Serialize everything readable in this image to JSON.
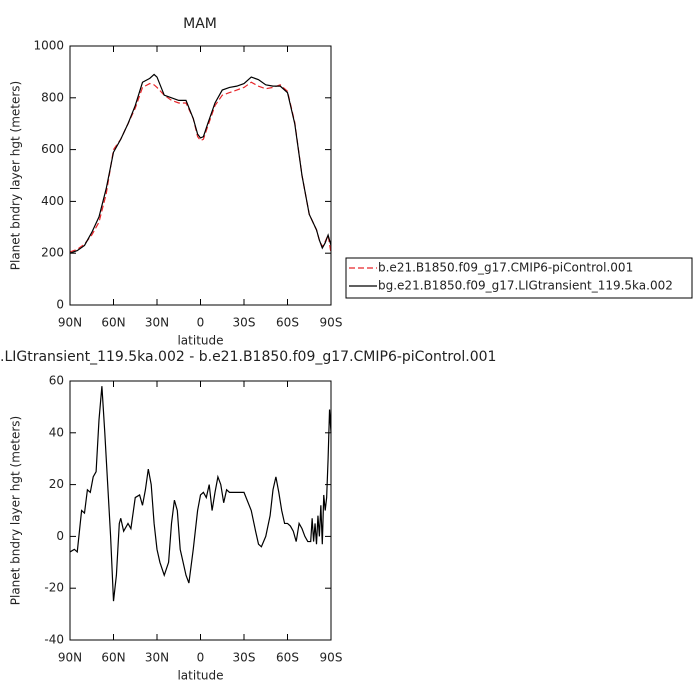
{
  "chart_data": [
    {
      "type": "line",
      "title": "MAM",
      "ylabel": "Planet bndry layer hgt (meters)",
      "xlabel": "latitude",
      "x": [
        90,
        85,
        80,
        75,
        70,
        65,
        60,
        55,
        50,
        45,
        40,
        35,
        32,
        30,
        25,
        20,
        15,
        10,
        5,
        2,
        0,
        -2,
        -5,
        -10,
        -15,
        -20,
        -25,
        -30,
        -35,
        -40,
        -45,
        -50,
        -55,
        -60,
        -65,
        -70,
        -75,
        -80,
        -82,
        -84,
        -86,
        -88,
        -90
      ],
      "series": [
        {
          "name": "b.e21.B1850.f09_g17.CMIP6-piControl.001",
          "color": "#e8262a",
          "style": "dashed",
          "values": [
            205,
            215,
            235,
            270,
            320,
            430,
            600,
            640,
            700,
            760,
            840,
            855,
            850,
            840,
            810,
            790,
            780,
            780,
            720,
            650,
            635,
            640,
            690,
            770,
            810,
            820,
            830,
            840,
            860,
            845,
            835,
            840,
            850,
            825,
            705,
            500,
            350,
            290,
            250,
            225,
            245,
            270,
            200
          ]
        },
        {
          "name": "bg.e21.B1850.f09_g17.LIGtransient_119.5ka.002",
          "color": "#000000",
          "style": "solid",
          "values": [
            200,
            210,
            230,
            280,
            340,
            450,
            590,
            640,
            700,
            770,
            860,
            875,
            890,
            880,
            810,
            800,
            790,
            790,
            720,
            660,
            645,
            650,
            700,
            780,
            830,
            840,
            845,
            855,
            880,
            870,
            850,
            845,
            845,
            820,
            700,
            500,
            350,
            290,
            250,
            220,
            240,
            270,
            230
          ]
        }
      ],
      "xlim": [
        90,
        -90
      ],
      "xticks": [
        {
          "value": 90,
          "label": "90N"
        },
        {
          "value": 60,
          "label": "60N"
        },
        {
          "value": 30,
          "label": "30N"
        },
        0,
        {
          "value": -30,
          "label": "30S"
        },
        {
          "value": -60,
          "label": "60S"
        },
        {
          "value": -90,
          "label": "90S"
        }
      ],
      "ylim": [
        0,
        1000
      ],
      "yticks": [
        0,
        200,
        400,
        600,
        800,
        1000
      ],
      "legend": "right"
    },
    {
      "type": "line",
      "title": ".LIGtransient_119.5ka.002 - b.e21.B1850.f09_g17.CMIP6-piControl.001",
      "ylabel": "Planet bndry layer hgt (meters)",
      "xlabel": "latitude",
      "x": [
        90,
        87,
        85,
        82,
        80,
        78,
        76,
        74,
        72,
        70,
        68,
        66,
        64,
        62,
        60,
        58,
        56,
        55,
        53,
        50,
        48,
        45,
        42,
        40,
        38,
        36,
        34,
        32,
        30,
        28,
        25,
        22,
        20,
        18,
        16,
        14,
        12,
        10,
        8,
        5,
        2,
        0,
        -2,
        -4,
        -6,
        -8,
        -10,
        -12,
        -14,
        -16,
        -18,
        -20,
        -25,
        -30,
        -35,
        -38,
        -40,
        -42,
        -45,
        -48,
        -50,
        -52,
        -54,
        -56,
        -58,
        -60,
        -62,
        -64,
        -66,
        -68,
        -70,
        -72,
        -74,
        -76,
        -77,
        -78,
        -79,
        -80,
        -81,
        -82,
        -83,
        -84,
        -85,
        -86,
        -87,
        -88,
        -89,
        -90
      ],
      "series": [
        {
          "name": null,
          "color": "#000000",
          "style": "solid",
          "values": [
            -6,
            -5,
            -6,
            10,
            9,
            18,
            17,
            23,
            25,
            45,
            58,
            40,
            20,
            0,
            -25,
            -15,
            5,
            7,
            2,
            5,
            3,
            15,
            16,
            12,
            18,
            26,
            20,
            5,
            -5,
            -10,
            -15,
            -10,
            5,
            14,
            10,
            -5,
            -10,
            -15,
            -18,
            -5,
            10,
            16,
            17,
            15,
            20,
            10,
            17,
            23,
            20,
            13,
            18,
            17,
            17,
            17,
            10,
            2,
            -3,
            -4,
            0,
            8,
            18,
            23,
            17,
            10,
            5,
            5,
            4,
            2,
            -2,
            5,
            3,
            0,
            -2,
            -2,
            7,
            -2,
            5,
            -3,
            8,
            0,
            12,
            -3,
            16,
            10,
            15,
            30,
            49,
            40
          ]
        }
      ],
      "xlim": [
        90,
        -90
      ],
      "xticks": [
        {
          "value": 90,
          "label": "90N"
        },
        {
          "value": 60,
          "label": "60N"
        },
        {
          "value": 30,
          "label": "30N"
        },
        0,
        {
          "value": -30,
          "label": "30S"
        },
        {
          "value": -60,
          "label": "60S"
        },
        {
          "value": -90,
          "label": "90S"
        }
      ],
      "ylim": [
        -40,
        60
      ],
      "yticks": [
        -40,
        -20,
        0,
        20,
        40,
        60
      ]
    }
  ]
}
